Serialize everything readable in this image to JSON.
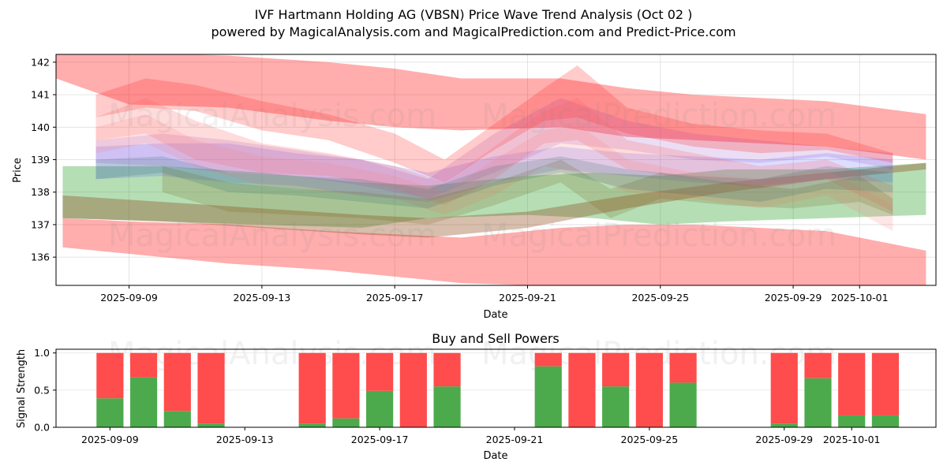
{
  "header": {
    "title": "IVF Hartmann Holding AG (VBSN) Price Wave Trend Analysis (Oct 02 )",
    "subtitle": "powered by MagicalAnalysis.com and MagicalPrediction.com and Predict-Price.com"
  },
  "watermarks": [
    "MagicalAnalysis.com",
    "MagicalPrediction.com"
  ],
  "chart_data": [
    {
      "type": "area",
      "title": "",
      "xlabel": "Date",
      "ylabel": "Price",
      "xlim": [
        "2025-09-06.8",
        "2025-10-03.3"
      ],
      "ylim": [
        135.13,
        142.24
      ],
      "grid": true,
      "x_ticks": [
        "2025-09-09",
        "2025-09-13",
        "2025-09-17",
        "2025-09-21",
        "2025-09-25",
        "2025-09-29",
        "2025-10-01"
      ],
      "y_ticks": [
        136,
        137,
        138,
        139,
        140,
        141,
        142
      ],
      "bands": [
        {
          "name": "upper-envelope",
          "color": "#ff0000",
          "opacity": 0.32,
          "x": [
            6.8,
            9.0,
            12.0,
            15.0,
            17.0,
            19.0,
            22.0,
            24.0,
            26.0,
            30.0,
            33.0
          ],
          "low": [
            141.5,
            140.7,
            140.6,
            140.2,
            140.0,
            139.9,
            140.0,
            139.7,
            139.6,
            139.4,
            139.0
          ],
          "high": [
            142.3,
            142.3,
            142.2,
            142.0,
            141.8,
            141.5,
            141.5,
            141.2,
            141.0,
            140.8,
            140.4
          ]
        },
        {
          "name": "lower-envelope",
          "color": "#ff0000",
          "opacity": 0.32,
          "x": [
            7.0,
            9.0,
            12.0,
            15.0,
            17.0,
            19.0,
            22.0,
            24.0,
            26.0,
            30.0,
            33.0
          ],
          "low": [
            136.3,
            136.1,
            135.8,
            135.6,
            135.4,
            135.2,
            135.1,
            135.0,
            135.0,
            134.9,
            134.8
          ],
          "high": [
            137.2,
            137.1,
            137.0,
            136.8,
            136.7,
            136.6,
            136.9,
            137.0,
            137.0,
            136.8,
            136.2
          ]
        },
        {
          "name": "green-band",
          "color": "#2ca02c",
          "opacity": 0.35,
          "x": [
            7.0,
            10.0,
            13.0,
            16.0,
            18.0,
            21.0,
            23.0,
            25.0,
            27.0,
            30.0,
            33.0
          ],
          "low": [
            137.2,
            137.1,
            137.0,
            136.9,
            137.2,
            137.3,
            137.2,
            137.0,
            137.1,
            137.2,
            137.3
          ],
          "high": [
            138.8,
            138.8,
            138.6,
            138.3,
            138.2,
            138.5,
            138.6,
            138.5,
            138.7,
            138.7,
            138.9
          ]
        },
        {
          "name": "brown-band",
          "color": "#8b4513",
          "opacity": 0.35,
          "x": [
            7.0,
            10.0,
            13.0,
            16.0,
            18.0,
            21.0,
            24.0,
            27.0,
            30.0,
            33.0
          ],
          "low": [
            137.2,
            137.1,
            136.9,
            136.7,
            136.6,
            136.9,
            137.5,
            138.0,
            138.4,
            138.7
          ],
          "high": [
            137.9,
            137.7,
            137.5,
            137.3,
            137.2,
            137.4,
            137.9,
            138.3,
            138.6,
            138.9
          ]
        },
        {
          "name": "blue-band",
          "color": "#4040ff",
          "opacity": 0.18,
          "x": [
            8.0,
            10.0,
            12.0,
            14.0,
            16.0,
            18.0,
            20.0,
            22.0,
            24.0,
            26.0,
            28.0,
            30.0,
            32.0
          ],
          "low": [
            138.4,
            138.5,
            138.3,
            138.2,
            137.9,
            137.7,
            138.3,
            138.7,
            138.5,
            138.3,
            138.2,
            138.4,
            138.3
          ],
          "high": [
            139.4,
            139.5,
            139.5,
            139.2,
            139.0,
            138.6,
            139.1,
            139.4,
            139.2,
            139.1,
            139.0,
            139.2,
            139.0
          ]
        },
        {
          "name": "purple-band",
          "color": "#9040c0",
          "opacity": 0.18,
          "x": [
            8.0,
            10.0,
            12.0,
            14.0,
            16.0,
            18.0,
            20.0,
            22.0,
            24.0,
            26.0,
            28.0,
            30.0,
            32.0
          ],
          "low": [
            138.9,
            138.8,
            138.6,
            138.5,
            138.2,
            137.8,
            138.6,
            139.5,
            139.3,
            139.0,
            138.9,
            139.1,
            138.7
          ],
          "high": [
            139.6,
            139.8,
            139.6,
            139.3,
            139.0,
            138.4,
            139.8,
            140.9,
            140.2,
            139.8,
            139.6,
            139.4,
            139.2
          ]
        },
        {
          "name": "red-wave-1",
          "color": "#ff3030",
          "opacity": 0.25,
          "x": [
            8.0,
            9.5,
            11.0,
            13.0,
            15.0,
            17.0,
            18.5,
            20.0,
            21.5,
            22.5,
            24.0,
            26.0,
            28.0,
            30.0,
            32.0
          ],
          "low": [
            140.3,
            140.6,
            140.5,
            139.9,
            139.6,
            138.9,
            138.3,
            139.3,
            140.2,
            140.3,
            139.8,
            139.4,
            139.2,
            139.3,
            138.9
          ],
          "high": [
            141.0,
            141.5,
            141.3,
            140.8,
            140.4,
            139.8,
            139.0,
            140.1,
            141.2,
            141.9,
            140.6,
            140.1,
            139.9,
            139.8,
            139.2
          ]
        },
        {
          "name": "red-wave-2",
          "color": "#ff6060",
          "opacity": 0.22,
          "x": [
            8.0,
            9.5,
            11.0,
            13.0,
            15.0,
            17.0,
            18.5,
            20.0,
            21.5,
            22.5,
            24.0,
            26.0,
            28.0,
            30.0,
            32.0
          ],
          "low": [
            139.6,
            139.8,
            139.0,
            138.6,
            138.5,
            138.1,
            137.6,
            138.4,
            139.5,
            139.6,
            138.7,
            138.4,
            138.1,
            138.4,
            137.4
          ],
          "high": [
            140.3,
            140.9,
            140.2,
            139.5,
            139.2,
            138.8,
            138.3,
            139.4,
            140.5,
            140.9,
            139.6,
            139.2,
            138.8,
            139.0,
            138.2
          ]
        },
        {
          "name": "red-wave-3",
          "color": "#ff8080",
          "opacity": 0.2,
          "x": [
            8.0,
            9.5,
            11.0,
            13.0,
            15.0,
            17.0,
            18.5,
            20.0,
            21.5,
            22.5,
            24.0,
            26.0,
            28.0,
            30.0,
            32.0
          ],
          "low": [
            139.2,
            139.5,
            138.8,
            138.2,
            138.0,
            137.8,
            137.3,
            137.9,
            138.8,
            138.6,
            138.0,
            137.8,
            137.5,
            137.9,
            136.8
          ],
          "high": [
            140.0,
            140.4,
            139.6,
            139.1,
            138.9,
            138.5,
            138.0,
            139.0,
            139.9,
            140.1,
            139.0,
            138.6,
            138.4,
            138.7,
            137.6
          ]
        },
        {
          "name": "olive-wave",
          "color": "#7a6a20",
          "opacity": 0.22,
          "x": [
            10.0,
            12.0,
            14.0,
            16.0,
            18.0,
            20.0,
            22.0,
            23.5,
            25.0,
            27.0,
            29.0,
            31.0,
            32.0
          ],
          "low": [
            138.0,
            137.4,
            137.3,
            137.2,
            137.0,
            137.6,
            138.3,
            137.2,
            137.8,
            137.6,
            137.5,
            137.7,
            137.3
          ],
          "high": [
            138.8,
            138.3,
            138.1,
            138.0,
            137.8,
            138.3,
            139.0,
            138.1,
            138.6,
            138.3,
            138.1,
            138.5,
            137.8
          ]
        },
        {
          "name": "teal-wave",
          "color": "#307070",
          "opacity": 0.2,
          "x": [
            8.0,
            10.0,
            12.0,
            14.0,
            16.0,
            18.0,
            20.0,
            22.0,
            24.0,
            26.0,
            28.0,
            30.0,
            32.0
          ],
          "low": [
            138.4,
            138.6,
            138.0,
            137.9,
            137.7,
            137.5,
            138.2,
            138.6,
            138.1,
            137.9,
            137.7,
            138.1,
            138.0
          ],
          "high": [
            139.0,
            139.1,
            138.6,
            138.5,
            138.4,
            138.1,
            138.8,
            139.1,
            138.7,
            138.5,
            138.4,
            138.8,
            138.6
          ]
        }
      ]
    },
    {
      "type": "bar",
      "title": "Buy and Sell Powers",
      "xlabel": "Date",
      "ylabel": "Signal Strength",
      "xlim": [
        "2025-09-07.4",
        "2025-10-03.5"
      ],
      "ylim": [
        0,
        1.05
      ],
      "grid": true,
      "x_ticks": [
        "2025-09-09",
        "2025-09-13",
        "2025-09-17",
        "2025-09-21",
        "2025-09-25",
        "2025-09-29",
        "2025-10-01"
      ],
      "y_ticks": [
        "0.0",
        "0.5",
        "1.0"
      ],
      "colors": {
        "buy": "#4caa4c",
        "sell": "#ff4c4c"
      },
      "categories": [
        "2025-09-09",
        "2025-09-10",
        "2025-09-11",
        "2025-09-12",
        "2025-09-15",
        "2025-09-16",
        "2025-09-17",
        "2025-09-18",
        "2025-09-19",
        "2025-09-22",
        "2025-09-23",
        "2025-09-24",
        "2025-09-25",
        "2025-09-26",
        "2025-09-29",
        "2025-09-30",
        "2025-10-01",
        "2025-10-02"
      ],
      "series": [
        {
          "name": "Buy",
          "values": [
            0.39,
            0.67,
            0.22,
            0.05,
            0.05,
            0.12,
            0.49,
            0.0,
            0.55,
            0.82,
            0.0,
            0.55,
            0.0,
            0.6,
            0.05,
            0.66,
            0.16,
            0.16
          ]
        },
        {
          "name": "Sell",
          "values": [
            0.61,
            0.33,
            0.78,
            0.95,
            0.95,
            0.88,
            0.51,
            1.0,
            0.45,
            0.18,
            1.0,
            0.45,
            1.0,
            0.4,
            0.95,
            0.34,
            0.84,
            0.84
          ]
        }
      ]
    }
  ]
}
